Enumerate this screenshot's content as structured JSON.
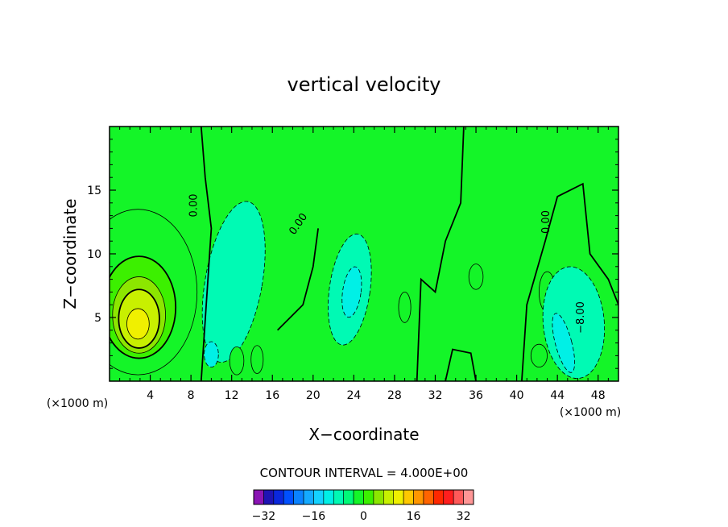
{
  "chart_data": {
    "type": "heatmap",
    "title": "vertical velocity",
    "xlabel": "X−coordinate",
    "ylabel": "Z−coordinate",
    "x_unit_left": "(×1000 m)",
    "x_unit_right": "(×1000 m)",
    "xlim": [
      0,
      50
    ],
    "ylim": [
      0,
      20
    ],
    "x_ticks": [
      4,
      8,
      12,
      16,
      20,
      24,
      28,
      32,
      36,
      40,
      44,
      48
    ],
    "x_tick_labels": [
      "4",
      "8",
      "12",
      "16",
      "20",
      "24",
      "28",
      "32",
      "36",
      "40",
      "44",
      "48"
    ],
    "y_ticks": [
      5,
      10,
      15
    ],
    "y_tick_labels": [
      "5",
      "10",
      "15"
    ],
    "contour_interval_label": "CONTOUR INTERVAL = 4.000E+00",
    "contour_interval": 4,
    "contour_labels": [
      "0.00",
      "0.00",
      "0.00",
      "−8.00"
    ],
    "colorbar": {
      "min": -36,
      "max": 36,
      "step": 4,
      "tick_values": [
        -32,
        -16,
        0,
        16,
        32
      ],
      "tick_labels": [
        "−32",
        "−16",
        "0",
        "16",
        "32"
      ],
      "colors": [
        "#8a14b4",
        "#1e14b4",
        "#0a28dc",
        "#0050ff",
        "#0a82ff",
        "#14aaff",
        "#14d2ff",
        "#00f0e6",
        "#00fab4",
        "#00fa78",
        "#14f528",
        "#3cf000",
        "#8ce600",
        "#c8f000",
        "#f0f000",
        "#ffc800",
        "#ff9600",
        "#ff6400",
        "#ff2800",
        "#ff1e1e",
        "#ff5a5a",
        "#ff9696"
      ]
    },
    "features": [
      {
        "kind": "updraft",
        "x": 3,
        "z": 4.5,
        "peak": 22
      },
      {
        "kind": "downdraft",
        "x": 13,
        "z": 8,
        "peak": -4
      },
      {
        "kind": "downdraft",
        "x": 23.5,
        "z": 7,
        "peak": -8
      },
      {
        "kind": "downdraft",
        "x": 45.5,
        "z": 4,
        "peak": -10
      },
      {
        "kind": "updraft",
        "x": 43,
        "z": 6,
        "peak": 6
      }
    ]
  }
}
